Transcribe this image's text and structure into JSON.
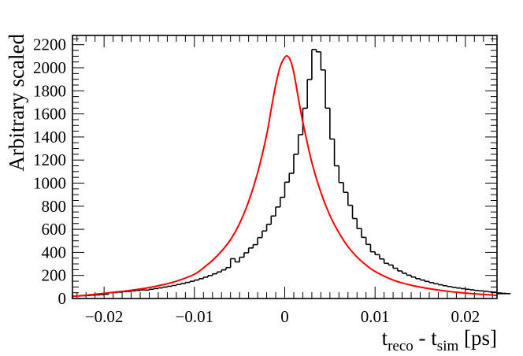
{
  "chart_data": {
    "type": "histogram",
    "ylabel": "Arbitrary scaled",
    "xlabel_parts": {
      "t1": "t",
      "sub1": "reco",
      "mid": " - t",
      "sub2": "sim",
      "unit": " [ps]"
    },
    "xlim": [
      -0.0235,
      0.0235
    ],
    "ylim": [
      0,
      2280
    ],
    "x_ticks": [
      -0.02,
      -0.01,
      0,
      0.01,
      0.02
    ],
    "x_tick_labels": [
      "−0.02",
      "−0.01",
      "0",
      "0.01",
      "0.02"
    ],
    "y_ticks": [
      0,
      200,
      400,
      600,
      800,
      1000,
      1200,
      1400,
      1600,
      1800,
      2000,
      2200
    ],
    "y_tick_labels": [
      "0",
      "200",
      "400",
      "600",
      "800",
      "1000",
      "1200",
      "1400",
      "1600",
      "1800",
      "2000",
      "2200"
    ],
    "histogram": {
      "bin_start": -0.0235,
      "bin_width": 0.0005,
      "color": "#000000",
      "values": [
        20,
        22,
        24,
        26,
        29,
        31,
        34,
        37,
        50,
        52,
        55,
        59,
        62,
        66,
        70,
        75,
        73,
        80,
        86,
        92,
        99,
        106,
        113,
        121,
        130,
        139,
        149,
        160,
        172,
        185,
        199,
        214,
        230,
        248,
        268,
        345,
        317,
        358,
        396,
        438,
        467,
        528,
        585,
        643,
        715,
        793,
        877,
        1008,
        1085,
        1250,
        1420,
        1649,
        1898,
        2158,
        2138,
        1981,
        1650,
        1382,
        1150,
        1005,
        920,
        808,
        693,
        606,
        530,
        469,
        405,
        380,
        343,
        305,
        290,
        262,
        239,
        219,
        202,
        186,
        172,
        160,
        148,
        138,
        128,
        119,
        111,
        104,
        97,
        91,
        85,
        80,
        75,
        70,
        66,
        62,
        58,
        55,
        52,
        48,
        45,
        42
      ]
    },
    "fit": {
      "color": "#ff0000",
      "x": [
        -0.0235,
        -0.022,
        -0.02,
        -0.018,
        -0.016,
        -0.014,
        -0.012,
        -0.01,
        -0.009,
        -0.008,
        -0.007,
        -0.006,
        -0.005,
        -0.004,
        -0.003,
        -0.002,
        -0.0015,
        -0.001,
        -0.0005,
        0,
        0.0003,
        0.0006,
        0.001,
        0.0015,
        0.002,
        0.003,
        0.004,
        0.005,
        0.006,
        0.007,
        0.008,
        0.009,
        0.01,
        0.012,
        0.014,
        0.016,
        0.018,
        0.02,
        0.022,
        0.0235
      ],
      "y": [
        18,
        28,
        45,
        62,
        82,
        110,
        150,
        210,
        265,
        330,
        410,
        510,
        650,
        840,
        1090,
        1420,
        1640,
        1850,
        2010,
        2090,
        2100,
        2070,
        1960,
        1740,
        1530,
        1180,
        920,
        720,
        570,
        450,
        360,
        290,
        235,
        160,
        115,
        85,
        63,
        47,
        35,
        28
      ]
    }
  }
}
